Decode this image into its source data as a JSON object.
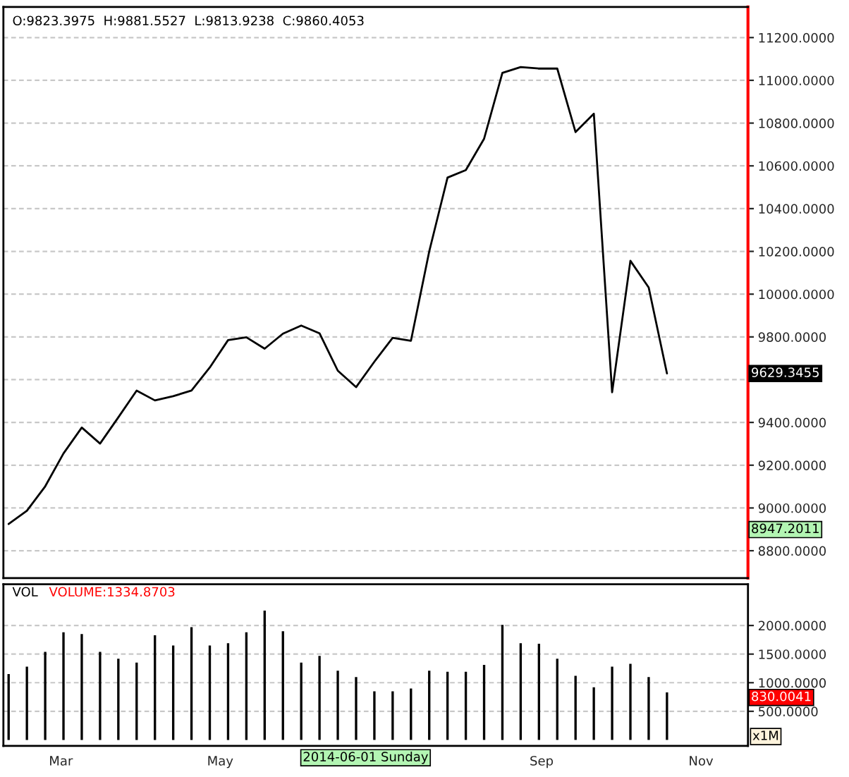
{
  "chart_data": [
    {
      "type": "line",
      "annotations": [
        "O:9823.3975  H:9881.5527  L:9813.9238  C:9860.4053",
        "9629.3455",
        "8947.2011"
      ],
      "x": [
        "2014-02-09",
        "2014-02-16",
        "2014-02-23",
        "2014-03-02",
        "2014-03-09",
        "2014-03-16",
        "2014-03-23",
        "2014-03-30",
        "2014-04-06",
        "2014-04-13",
        "2014-04-20",
        "2014-04-27",
        "2014-05-04",
        "2014-05-11",
        "2014-05-18",
        "2014-05-25",
        "2014-06-01",
        "2014-06-08",
        "2014-06-15",
        "2014-06-22",
        "2014-06-29",
        "2014-07-06",
        "2014-07-13",
        "2014-07-20",
        "2014-07-27",
        "2014-08-03",
        "2014-08-10",
        "2014-08-17",
        "2014-08-24",
        "2014-08-31",
        "2014-09-07",
        "2014-09-14",
        "2014-09-21",
        "2014-09-28",
        "2014-10-05",
        "2014-10-12",
        "2014-10-19"
      ],
      "series": [
        {
          "color": "#000000",
          "values": [
            8925,
            8987,
            9101,
            9255,
            9376,
            9301,
            9424,
            9549,
            9503,
            9523,
            9549,
            9657,
            9785,
            9798,
            9745,
            9815,
            9853,
            9817,
            9642,
            9565,
            9684,
            9796,
            9782,
            10200,
            10545,
            10580,
            10727,
            11035,
            11062,
            11055,
            11055,
            10758,
            10844,
            9541,
            10156,
            10031,
            9629
          ]
        }
      ],
      "xlim": [
        "2014-02-07",
        "2014-11-19"
      ],
      "ylim": [
        8672,
        11343
      ],
      "yticks": [
        {
          "value": 8800,
          "label": "8800.0000"
        },
        {
          "value": 9000,
          "label": "9000.0000"
        },
        {
          "value": 9200,
          "label": "9200.0000"
        },
        {
          "value": 9400,
          "label": "9400.0000"
        },
        {
          "value": 9600,
          "label": null
        },
        {
          "value": 9800,
          "label": "9800.0000"
        },
        {
          "value": 10000,
          "label": "10000.0000"
        },
        {
          "value": 10200,
          "label": "10200.0000"
        },
        {
          "value": 10400,
          "label": "10400.0000"
        },
        {
          "value": 10600,
          "label": "10600.0000"
        },
        {
          "value": 10800,
          "label": "10800.0000"
        },
        {
          "value": 11000,
          "label": "11000.0000"
        },
        {
          "value": 11200,
          "label": "11200.0000"
        }
      ],
      "tick_labels": "y",
      "grid": "y"
    },
    {
      "type": "bar",
      "annotations": [
        "VOL",
        "VOLUME:1334.8703",
        "x1M",
        "830.0041",
        "2014-06-01 Sunday"
      ],
      "x": [
        "2014-02-09",
        "2014-02-16",
        "2014-02-23",
        "2014-03-02",
        "2014-03-09",
        "2014-03-16",
        "2014-03-23",
        "2014-03-30",
        "2014-04-06",
        "2014-04-13",
        "2014-04-20",
        "2014-04-27",
        "2014-05-04",
        "2014-05-11",
        "2014-05-18",
        "2014-05-25",
        "2014-06-01",
        "2014-06-08",
        "2014-06-15",
        "2014-06-22",
        "2014-06-29",
        "2014-07-06",
        "2014-07-13",
        "2014-07-20",
        "2014-07-27",
        "2014-08-03",
        "2014-08-10",
        "2014-08-17",
        "2014-08-24",
        "2014-08-31",
        "2014-09-07",
        "2014-09-14",
        "2014-09-21",
        "2014-09-28",
        "2014-10-05",
        "2014-10-12",
        "2014-10-19"
      ],
      "series": [
        {
          "color": "#000000",
          "values": [
            1150,
            1280,
            1540,
            1880,
            1850,
            1540,
            1420,
            1350,
            1830,
            1650,
            1970,
            1650,
            1690,
            1880,
            2260,
            1900,
            1350,
            1470,
            1210,
            1100,
            850,
            850,
            900,
            1210,
            1190,
            1190,
            1310,
            2010,
            1690,
            1680,
            1420,
            1120,
            920,
            1280,
            1330,
            1100,
            830
          ]
        }
      ],
      "xlim": [
        "2014-02-07",
        "2014-11-19"
      ],
      "xticks": [
        {
          "value": "2014-03-01",
          "label": "Mar"
        },
        {
          "value": "2014-05-01",
          "label": "May"
        },
        {
          "value": "2014-09-01",
          "label": "Sep"
        },
        {
          "value": "2014-11-01",
          "label": "Nov"
        }
      ],
      "ylim": [
        -105,
        2720
      ],
      "yticks": [
        {
          "value": 500,
          "label": "500.0000"
        },
        {
          "value": 1000,
          "label": "1000.0000"
        },
        {
          "value": 1500,
          "label": "1500.0000"
        },
        {
          "value": 2000,
          "label": "2000.0000"
        }
      ],
      "grid": "y"
    }
  ]
}
